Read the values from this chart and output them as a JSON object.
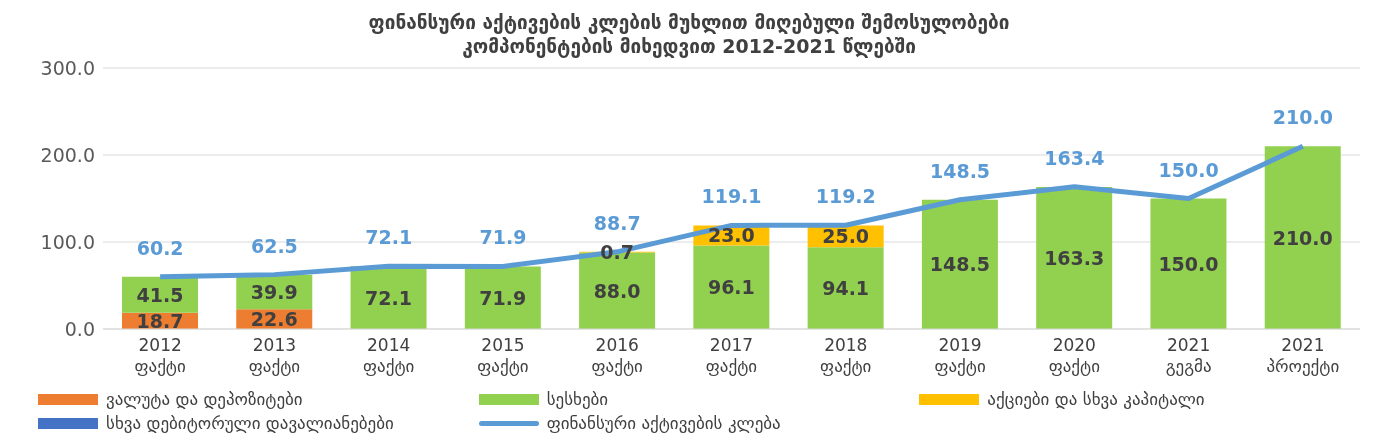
{
  "chart_data": {
    "type": "bar",
    "title": "ფინანსური აქტივების კლების მუხლით მიღებული შემოსულობები კომპონენტების მიხედვით 2012-2021 წლებში",
    "categories": [
      "2012\nფაქტი",
      "2013\nფაქტი",
      "2014\nფაქტი",
      "2015\nფაქტი",
      "2016\nფაქტი",
      "2017\nფაქტი",
      "2018\nფაქტი",
      "2019\nფაქტი",
      "2020\nფაქტი",
      "2021\nგეგმა",
      "2021\nპროექტი"
    ],
    "stacked": true,
    "series": [
      {
        "name": "ვალუტა და დეპოზიტები",
        "color": "#ed7d31",
        "values": [
          18.7,
          22.6,
          null,
          null,
          null,
          null,
          null,
          null,
          null,
          null,
          null
        ],
        "value_labels": [
          "18.7",
          "22.6",
          null,
          null,
          null,
          null,
          null,
          null,
          null,
          null,
          null
        ]
      },
      {
        "name": "სესხები",
        "color": "#92d050",
        "values": [
          41.5,
          39.9,
          72.1,
          71.9,
          88.0,
          96.1,
          94.1,
          148.5,
          163.3,
          150.0,
          210.0
        ],
        "value_labels": [
          "41.5",
          "39.9",
          "72.1",
          "71.9",
          "88.0",
          "96.1",
          "94.1",
          "148.5",
          "163.3",
          "150.0",
          "210.0"
        ]
      },
      {
        "name": "აქციები და სხვა კაპიტალი",
        "color": "#ffc000",
        "values": [
          null,
          null,
          null,
          null,
          0.7,
          23.0,
          25.0,
          null,
          null,
          null,
          null
        ],
        "value_labels": [
          null,
          null,
          null,
          null,
          "0.7",
          "23.0",
          "25.0",
          null,
          null,
          null,
          null
        ]
      },
      {
        "name": "სხვა დებიტორული დავალიანებები",
        "color": "#4472c4",
        "values": [
          null,
          null,
          null,
          null,
          null,
          null,
          null,
          null,
          null,
          null,
          null
        ]
      },
      {
        "name": "ფინანსური აქტივების კლება",
        "type": "line",
        "color": "#5b9bd5",
        "values": [
          60.2,
          62.5,
          72.1,
          71.9,
          88.7,
          119.1,
          119.2,
          148.5,
          163.4,
          150.0,
          210.0
        ],
        "value_labels": [
          "60.2",
          "62.5",
          "72.1",
          "71.9",
          "88.7",
          "119.1",
          "119.2",
          "148.5",
          "163.4",
          "150.0",
          "210.0"
        ]
      }
    ],
    "ylim": [
      0,
      300
    ],
    "yticks": [
      {
        "value": 0,
        "label": "0.0"
      },
      {
        "value": 100,
        "label": "100.0"
      },
      {
        "value": 200,
        "label": "200.0"
      },
      {
        "value": 300,
        "label": "300.0"
      }
    ],
    "grid": "y",
    "legend": "bottom",
    "marker": "none",
    "line_style": "solid"
  }
}
